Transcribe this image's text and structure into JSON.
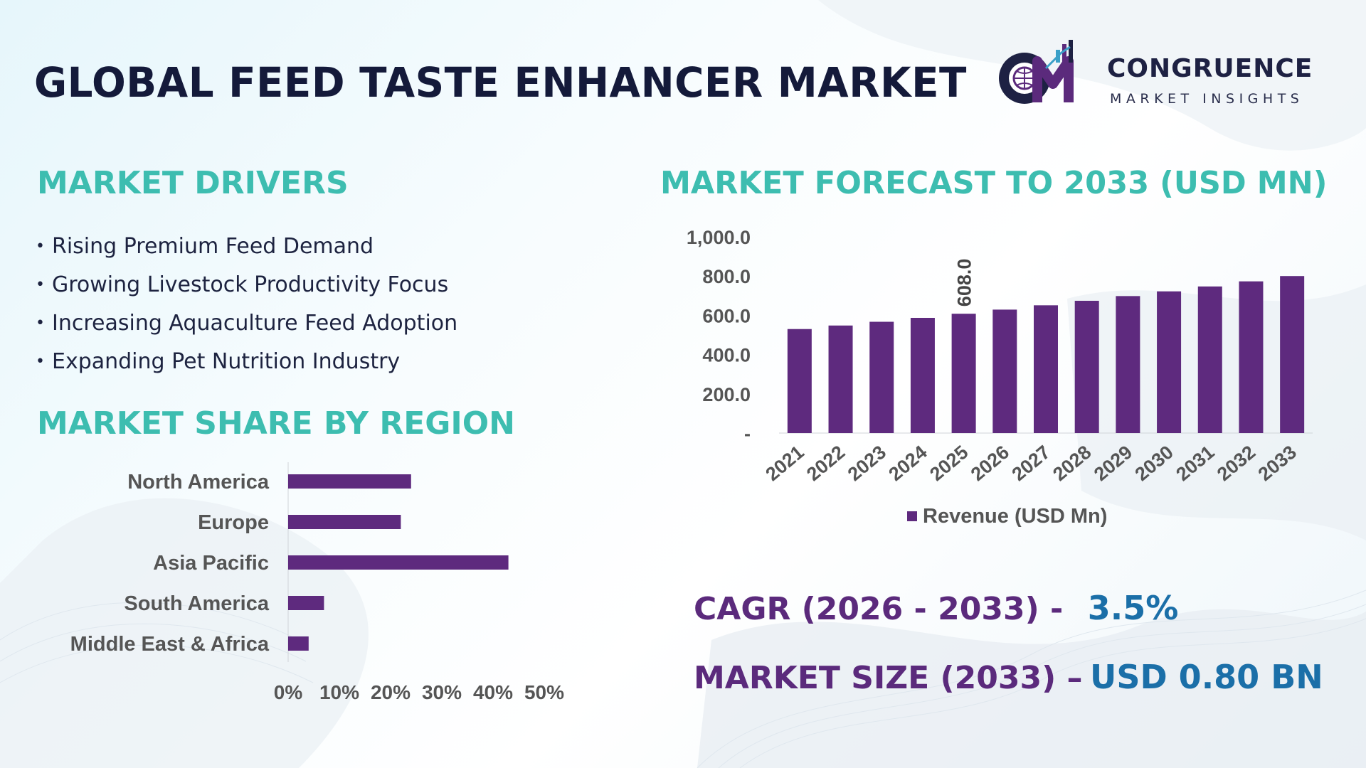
{
  "header": {
    "title": "GLOBAL FEED TASTE ENHANCER MARKET",
    "logo_name": "CONGRUENCE",
    "logo_tagline": "MARKET INSIGHTS",
    "logo_monogram": "CM"
  },
  "drivers": {
    "heading": "MARKET DRIVERS",
    "items": [
      "Rising Premium Feed Demand",
      "Growing Livestock Productivity Focus",
      "Increasing Aquaculture Feed Adoption",
      "Expanding Pet Nutrition Industry"
    ]
  },
  "region": {
    "heading": "MARKET SHARE BY REGION"
  },
  "forecast": {
    "heading": "MARKET FORECAST TO 2033 (USD MN)"
  },
  "kpis": {
    "cagr_label": "CAGR (2026 - 2033) -",
    "cagr_value": "3.5%",
    "size_label": "MARKET SIZE (2033) –",
    "size_value": "USD 0.80 BN"
  },
  "colors": {
    "bar": "#5e2a7e",
    "heading": "#3dbdb0",
    "title": "#141a3a",
    "kpi_label": "#5b2a7c",
    "kpi_value": "#1b6fa8"
  },
  "chart_data": [
    {
      "type": "bar",
      "orientation": "vertical",
      "categories": [
        "2021",
        "2022",
        "2023",
        "2024",
        "2025",
        "2026",
        "2027",
        "2028",
        "2029",
        "2030",
        "2031",
        "2032",
        "2033"
      ],
      "series": [
        {
          "name": "Revenue (USD Mn)",
          "values": [
            530,
            548,
            567,
            587,
            608,
            629,
            651,
            674,
            698,
            722,
            747,
            773,
            800
          ]
        }
      ],
      "data_labels": [
        {
          "category": "2025",
          "text": "608.0"
        }
      ],
      "y_ticks": [
        "-",
        "200.0",
        "400.0",
        "600.0",
        "800.0",
        "1,000.0"
      ],
      "ylim": [
        0,
        1000
      ],
      "legend": "bottom",
      "grid": false
    },
    {
      "type": "bar",
      "orientation": "horizontal",
      "categories": [
        "North America",
        "Europe",
        "Asia Pacific",
        "South America",
        "Middle East & Africa"
      ],
      "values": [
        24,
        22,
        43,
        7,
        4
      ],
      "x_ticks": [
        "0%",
        "10%",
        "20%",
        "30%",
        "40%",
        "50%"
      ],
      "xlim": [
        0,
        50
      ],
      "grid": false
    }
  ]
}
